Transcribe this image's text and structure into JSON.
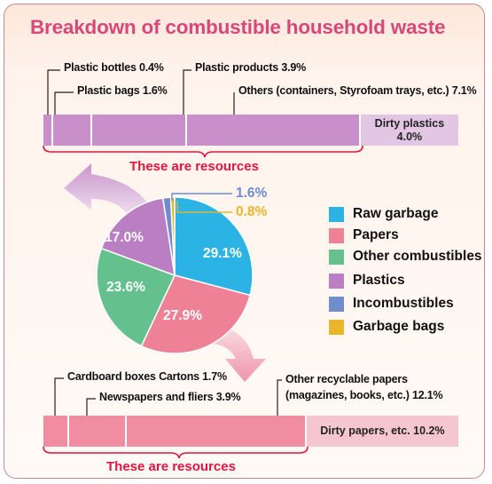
{
  "title": "Breakdown of combustible household waste",
  "chart_data": {
    "type": "pie",
    "categories": [
      "Raw garbage",
      "Papers",
      "Other combustibles",
      "Plastics",
      "Incombustibles",
      "Garbage bags"
    ],
    "values": [
      29.1,
      27.9,
      23.6,
      17.0,
      1.6,
      0.8
    ],
    "value_labels": [
      "29.1%",
      "27.9%",
      "23.6%",
      "17.0%",
      "1.6%",
      "0.8%"
    ],
    "colors": [
      "#2bb3e6",
      "#ee8196",
      "#64c08c",
      "#b97fc2",
      "#6f8ccd",
      "#e9b52a"
    ],
    "legend_position": "right",
    "plastics_breakdown": {
      "segments": [
        {
          "label": "Plastic bottles 0.4%",
          "value": 0.4
        },
        {
          "label": "Plastic bags 1.6%",
          "value": 1.6
        },
        {
          "label": "Plastic products 3.9%",
          "value": 3.9
        },
        {
          "label": "Others (containers, Styrofoam trays, etc.) 7.1%",
          "value": 7.1
        }
      ],
      "dirty": {
        "label": "Dirty plastics",
        "value_label": "4.0%",
        "value": 4.0
      },
      "resource_label": "These are resources",
      "color": "#c88fca",
      "dirty_color": "#e2c6e3"
    },
    "papers_breakdown": {
      "segments": [
        {
          "label": "Cardboard boxes Cartons 1.7%",
          "value": 1.7
        },
        {
          "label": "Newspapers and fliers 3.9%",
          "value": 3.9
        },
        {
          "label": "Other recyclable papers",
          "label_line2": "(magazines, books, etc.)  12.1%",
          "value": 12.1
        }
      ],
      "dirty": {
        "label": "Dirty papers, etc. 10.2%",
        "value": 10.2
      },
      "resource_label": "These are resources",
      "color": "#f08da1",
      "dirty_color": "#f6c6cf"
    }
  }
}
